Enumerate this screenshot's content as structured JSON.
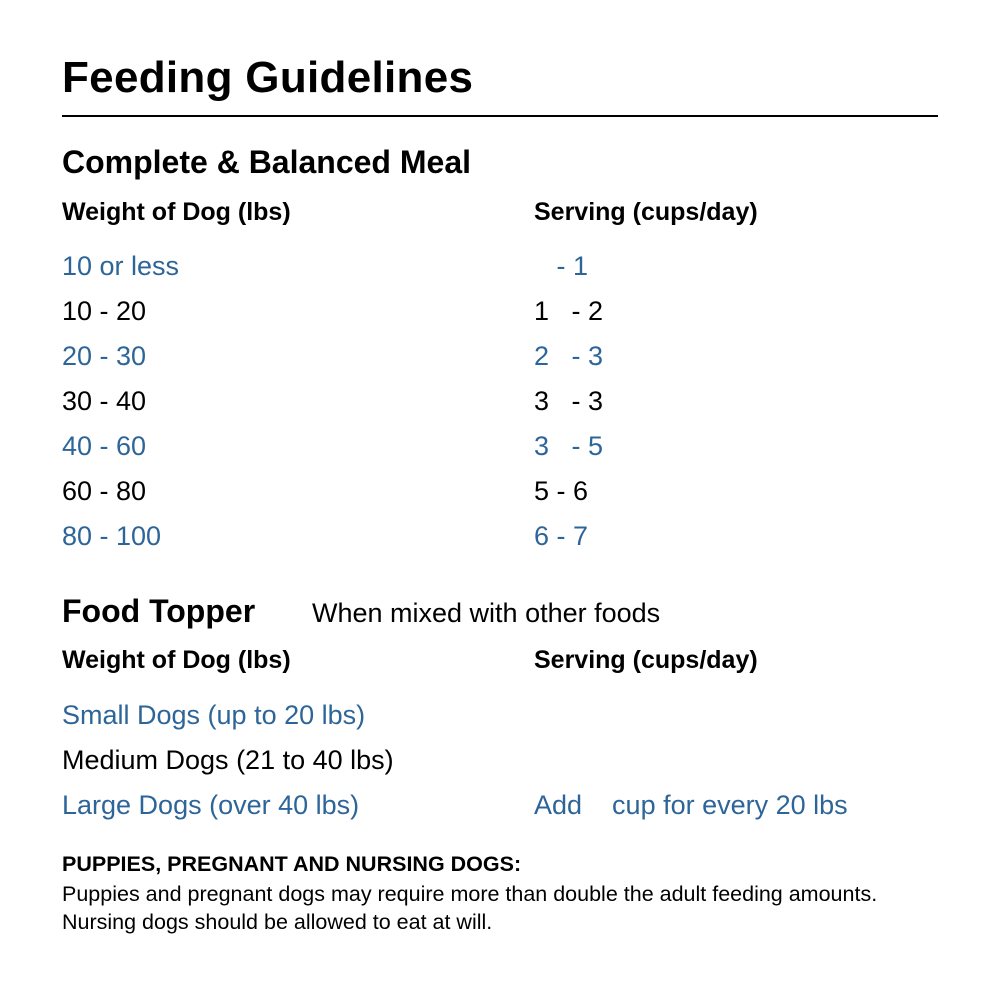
{
  "title": "Feeding Guidelines",
  "accent_color": "#2e6599",
  "meal": {
    "heading": "Complete & Balanced Meal",
    "col_weight": "Weight of Dog (lbs)",
    "col_serving": "Serving (cups/day)",
    "rows": [
      {
        "weight": "10 or less",
        "serving": "   - 1"
      },
      {
        "weight": "10 - 20",
        "serving": "1   - 2"
      },
      {
        "weight": "20 - 30",
        "serving": "2   - 3"
      },
      {
        "weight": "30 - 40",
        "serving": "3   - 3"
      },
      {
        "weight": "40 - 60",
        "serving": "3   - 5"
      },
      {
        "weight": "60 - 80",
        "serving": "5 - 6"
      },
      {
        "weight": "80 - 100",
        "serving": "6 - 7"
      }
    ]
  },
  "topper": {
    "heading": "Food Topper",
    "subheading": "When mixed with other foods",
    "col_weight": "Weight of Dog (lbs)",
    "col_serving": "Serving (cups/day)",
    "rows": [
      {
        "weight": "Small Dogs (up to 20 lbs)",
        "serving": ""
      },
      {
        "weight": "Medium Dogs (21 to 40 lbs)",
        "serving": ""
      },
      {
        "weight": "Large Dogs (over 40 lbs)",
        "serving": "Add    cup for every 20 lbs"
      }
    ]
  },
  "note": {
    "label": "PUPPIES, PREGNANT AND NURSING DOGS:",
    "text": " Puppies and pregnant dogs may require more than double the adult feeding amounts. Nursing dogs should be allowed to eat at will."
  }
}
